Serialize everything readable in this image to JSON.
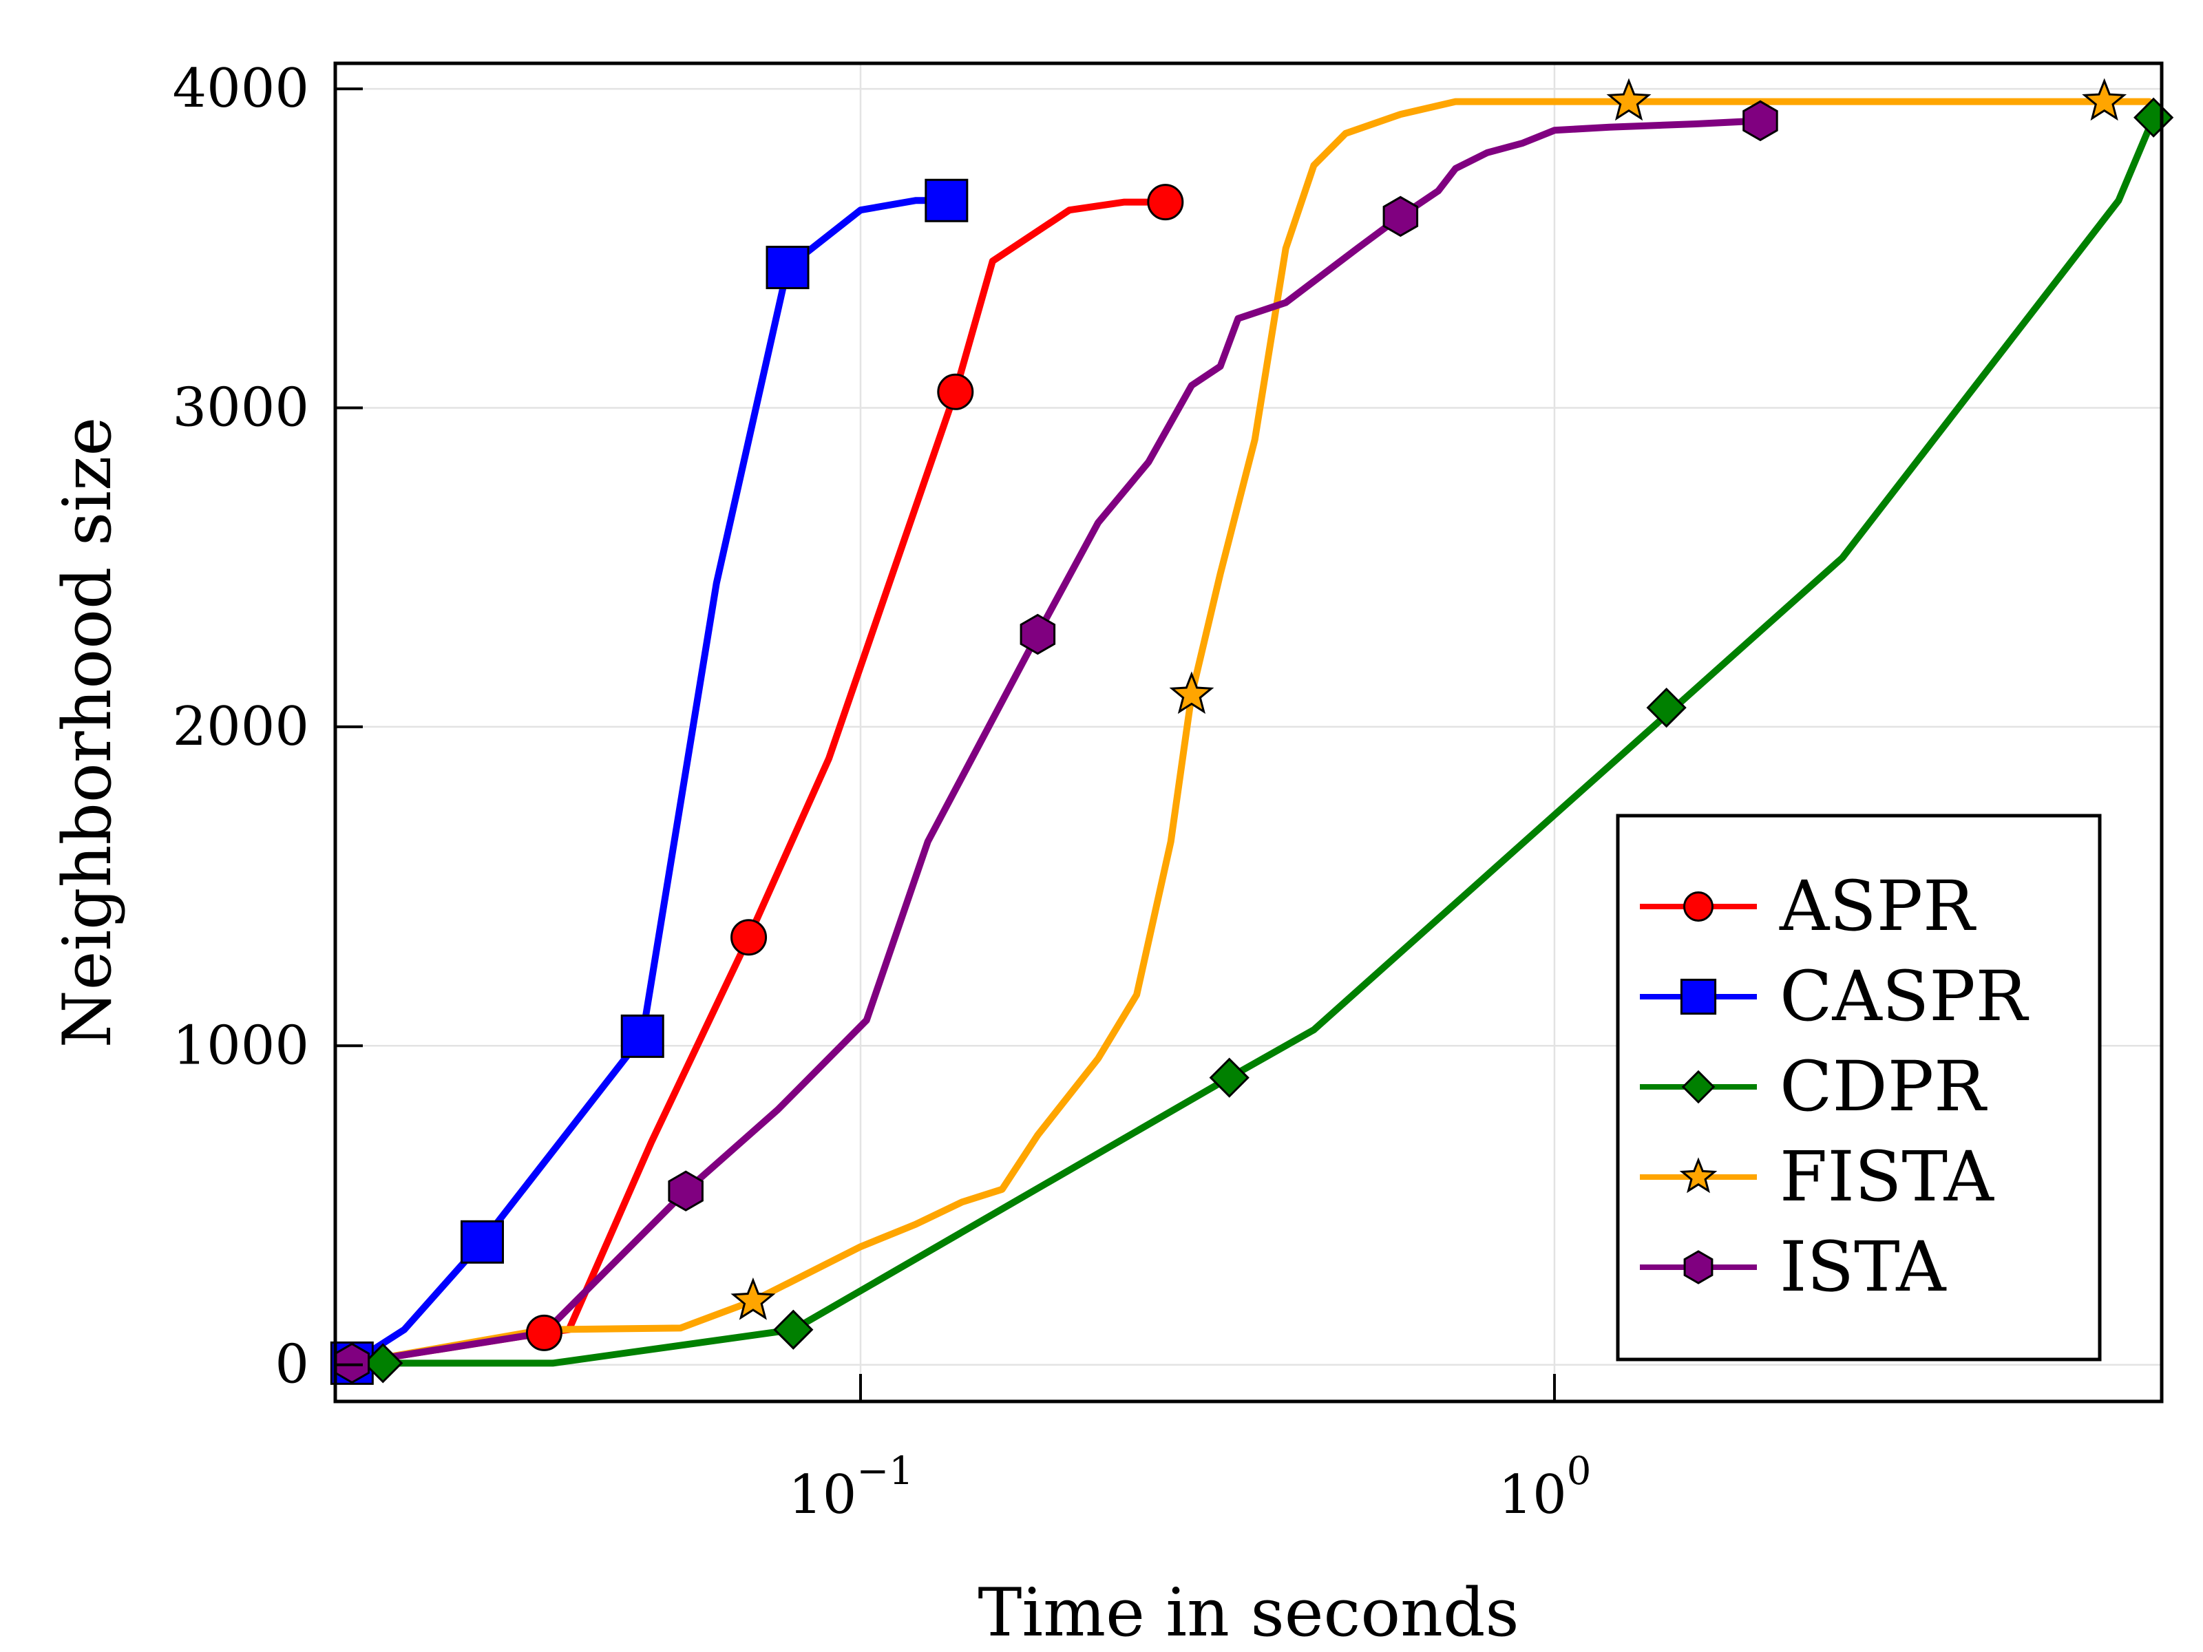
{
  "chart_data": {
    "type": "line",
    "xscale": "log",
    "xlim": [
      0.0175,
      7.5
    ],
    "ylim": [
      -115,
      4080
    ],
    "xlabel": "Time in seconds",
    "ylabel": "Neighborhood size",
    "grid": true,
    "legend_position": "bottom-right",
    "x_ticks": [
      {
        "value": 0.1,
        "base": "10",
        "exp": "−1"
      },
      {
        "value": 1,
        "base": "10",
        "exp": "0"
      }
    ],
    "y_ticks": [
      0,
      1000,
      2000,
      3000,
      4000
    ],
    "series": [
      {
        "name": "ASPR",
        "color": "#ff0000",
        "marker": "circle",
        "points": [
          [
            0.0185,
            5
          ],
          [
            0.035,
            100
          ],
          [
            0.038,
            110
          ],
          [
            0.05,
            700
          ],
          [
            0.069,
            1340
          ],
          [
            0.09,
            1900
          ],
          [
            0.11,
            2450
          ],
          [
            0.137,
            3050
          ],
          [
            0.155,
            3460
          ],
          [
            0.2,
            3620
          ],
          [
            0.24,
            3645
          ],
          [
            0.275,
            3645
          ]
        ],
        "markers": [
          [
            0.0185,
            5
          ],
          [
            0.035,
            100
          ],
          [
            0.069,
            1340
          ],
          [
            0.137,
            3050
          ],
          [
            0.275,
            3645
          ]
        ]
      },
      {
        "name": "CASPR",
        "color": "#0000ff",
        "marker": "square",
        "points": [
          [
            0.0185,
            5
          ],
          [
            0.022,
            110
          ],
          [
            0.0285,
            385
          ],
          [
            0.0485,
            1030
          ],
          [
            0.062,
            2450
          ],
          [
            0.0785,
            3440
          ],
          [
            0.1,
            3620
          ],
          [
            0.12,
            3650
          ],
          [
            0.133,
            3650
          ]
        ],
        "markers": [
          [
            0.0185,
            5
          ],
          [
            0.0285,
            385
          ],
          [
            0.0485,
            1030
          ],
          [
            0.0785,
            3440
          ],
          [
            0.133,
            3650
          ]
        ]
      },
      {
        "name": "CDPR",
        "color": "#008000",
        "marker": "diamond",
        "points": [
          [
            0.0205,
            5
          ],
          [
            0.036,
            5
          ],
          [
            0.08,
            110
          ],
          [
            0.34,
            900
          ],
          [
            0.45,
            1050
          ],
          [
            2.6,
            2530
          ],
          [
            6.5,
            3650
          ],
          [
            7.3,
            3910
          ]
        ],
        "markers": [
          [
            0.0205,
            5
          ],
          [
            0.08,
            110
          ],
          [
            0.34,
            900
          ],
          [
            1.45,
            2060
          ],
          [
            7.3,
            3910
          ]
        ]
      },
      {
        "name": "FISTA",
        "color": "#ffa500",
        "marker": "star",
        "points": [
          [
            0.0185,
            5
          ],
          [
            0.035,
            110
          ],
          [
            0.055,
            115
          ],
          [
            0.07,
            200
          ],
          [
            0.1,
            370
          ],
          [
            0.12,
            440
          ],
          [
            0.14,
            510
          ],
          [
            0.16,
            550
          ],
          [
            0.18,
            720
          ],
          [
            0.22,
            960
          ],
          [
            0.25,
            1160
          ],
          [
            0.28,
            1640
          ],
          [
            0.3,
            2100
          ],
          [
            0.33,
            2480
          ],
          [
            0.37,
            2900
          ],
          [
            0.41,
            3500
          ],
          [
            0.45,
            3760
          ],
          [
            0.5,
            3860
          ],
          [
            0.6,
            3920
          ],
          [
            0.72,
            3960
          ],
          [
            1.0,
            3960
          ],
          [
            1.28,
            3960
          ],
          [
            3.0,
            3960
          ],
          [
            6.2,
            3960
          ],
          [
            7.2,
            3960
          ]
        ],
        "markers": [
          [
            0.07,
            200
          ],
          [
            0.3,
            2100
          ],
          [
            1.28,
            3960
          ],
          [
            6.2,
            3960
          ]
        ]
      },
      {
        "name": "ISTA",
        "color": "#800080",
        "marker": "hexagon",
        "points": [
          [
            0.0185,
            5
          ],
          [
            0.035,
            100
          ],
          [
            0.056,
            545
          ],
          [
            0.076,
            800
          ],
          [
            0.102,
            1080
          ],
          [
            0.125,
            1640
          ],
          [
            0.18,
            2290
          ],
          [
            0.22,
            2640
          ],
          [
            0.26,
            2830
          ],
          [
            0.3,
            3070
          ],
          [
            0.33,
            3130
          ],
          [
            0.35,
            3280
          ],
          [
            0.41,
            3330
          ],
          [
            0.52,
            3500
          ],
          [
            0.6,
            3600
          ],
          [
            0.68,
            3680
          ],
          [
            0.72,
            3750
          ],
          [
            0.8,
            3800
          ],
          [
            0.9,
            3830
          ],
          [
            1.0,
            3870
          ],
          [
            1.2,
            3880
          ],
          [
            1.6,
            3890
          ],
          [
            1.98,
            3900
          ]
        ],
        "markers": [
          [
            0.0185,
            5
          ],
          [
            0.056,
            545
          ],
          [
            0.18,
            2290
          ],
          [
            0.6,
            3600
          ],
          [
            1.98,
            3900
          ]
        ]
      }
    ]
  }
}
